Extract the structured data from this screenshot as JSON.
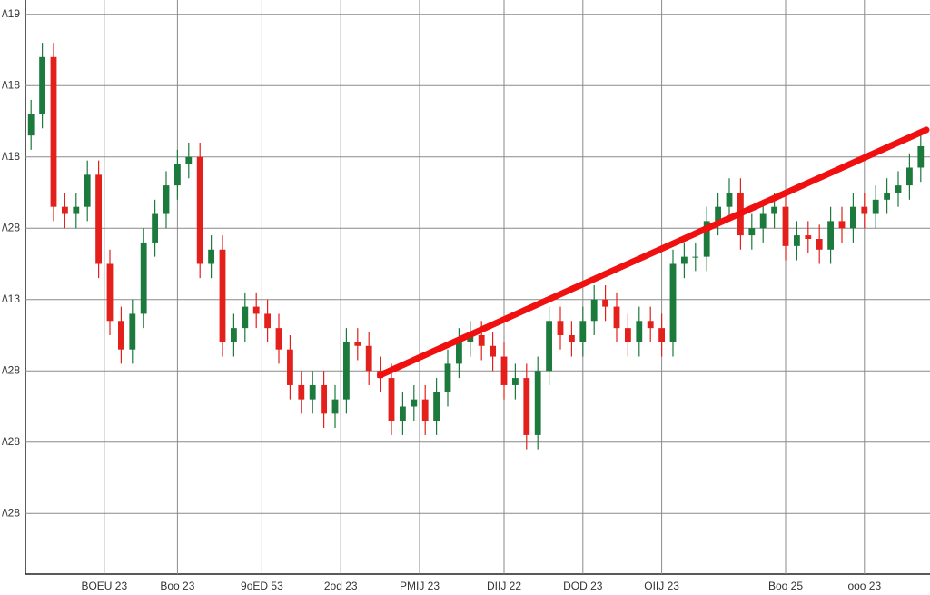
{
  "chart_data": {
    "type": "candlestick",
    "open": [
      6.3,
      6.6,
      7.4,
      5.3,
      5.2,
      5.3,
      5.75,
      4.5,
      3.7,
      3.3,
      3.8,
      4.8,
      5.2,
      5.6,
      5.9,
      6.0,
      4.5,
      4.7,
      3.4,
      3.6,
      3.9,
      3.8,
      3.6,
      3.3,
      2.8,
      2.6,
      2.8,
      2.4,
      2.6,
      3.4,
      3.35,
      3.0,
      2.9,
      2.3,
      2.5,
      2.6,
      2.3,
      2.7,
      3.1,
      3.4,
      3.5,
      3.35,
      3.2,
      2.8,
      2.9,
      2.1,
      3.0,
      3.7,
      3.5,
      3.4,
      3.7,
      4.0,
      3.9,
      3.6,
      3.4,
      3.7,
      3.6,
      3.4,
      4.5,
      4.6,
      4.6,
      5.1,
      5.3,
      5.5,
      4.9,
      5.0,
      5.2,
      5.3,
      4.75,
      4.9,
      4.85,
      4.7,
      5.1,
      5.0,
      5.3,
      5.2,
      5.4,
      5.5,
      5.6,
      5.85
    ],
    "high": [
      6.8,
      7.6,
      7.6,
      5.5,
      5.5,
      5.95,
      5.95,
      4.7,
      3.9,
      4.0,
      5.0,
      5.4,
      5.8,
      6.1,
      6.2,
      6.2,
      4.9,
      4.9,
      3.8,
      4.1,
      4.1,
      4.0,
      3.8,
      3.5,
      3.0,
      3.0,
      3.0,
      2.8,
      3.6,
      3.6,
      3.55,
      3.2,
      3.1,
      2.7,
      2.8,
      2.8,
      2.9,
      3.3,
      3.6,
      3.7,
      3.7,
      3.55,
      3.4,
      3.1,
      3.1,
      3.2,
      3.9,
      3.9,
      3.7,
      3.9,
      4.2,
      4.2,
      4.1,
      3.8,
      3.9,
      3.9,
      3.8,
      4.7,
      4.8,
      4.8,
      5.3,
      5.5,
      5.7,
      5.7,
      5.2,
      5.4,
      5.5,
      5.5,
      5.1,
      5.1,
      5.05,
      5.3,
      5.3,
      5.5,
      5.5,
      5.6,
      5.7,
      5.8,
      6.05,
      6.35
    ],
    "low": [
      6.1,
      6.4,
      5.1,
      5.0,
      5.0,
      5.1,
      4.3,
      3.5,
      3.1,
      3.1,
      3.6,
      4.6,
      5.0,
      5.4,
      5.7,
      4.3,
      4.3,
      3.2,
      3.2,
      3.4,
      3.6,
      3.4,
      3.1,
      2.6,
      2.4,
      2.4,
      2.2,
      2.2,
      2.4,
      3.15,
      2.8,
      2.7,
      2.1,
      2.1,
      2.3,
      2.1,
      2.1,
      2.5,
      2.9,
      3.2,
      3.15,
      3.0,
      2.6,
      2.6,
      1.9,
      1.9,
      2.8,
      3.3,
      3.2,
      3.2,
      3.5,
      3.7,
      3.4,
      3.2,
      3.2,
      3.4,
      3.2,
      3.2,
      4.3,
      4.4,
      4.4,
      4.9,
      5.1,
      4.7,
      4.7,
      4.8,
      5.0,
      4.55,
      4.55,
      4.65,
      4.5,
      4.5,
      4.8,
      4.8,
      5.0,
      5.0,
      5.2,
      5.3,
      5.4,
      5.65
    ],
    "close": [
      6.6,
      7.4,
      5.3,
      5.2,
      5.3,
      5.75,
      4.5,
      3.7,
      3.3,
      3.8,
      4.8,
      5.2,
      5.6,
      5.9,
      6.0,
      4.5,
      4.7,
      3.4,
      3.6,
      3.9,
      3.8,
      3.6,
      3.3,
      2.8,
      2.6,
      2.8,
      2.4,
      2.6,
      3.4,
      3.35,
      3.0,
      2.9,
      2.3,
      2.5,
      2.6,
      2.3,
      2.7,
      3.1,
      3.4,
      3.5,
      3.35,
      3.2,
      2.8,
      2.9,
      2.1,
      3.0,
      3.7,
      3.5,
      3.4,
      3.7,
      4.0,
      3.9,
      3.6,
      3.4,
      3.7,
      3.6,
      3.4,
      4.5,
      4.6,
      4.6,
      5.1,
      5.3,
      5.5,
      4.9,
      5.0,
      5.2,
      5.3,
      4.75,
      4.9,
      4.85,
      4.7,
      5.1,
      5.0,
      5.3,
      5.2,
      5.4,
      5.5,
      5.6,
      5.85,
      6.15
    ],
    "up_color": "#1b7a3c",
    "down_color": "#e3201b",
    "xlim": [
      0,
      80
    ],
    "xticks": [
      {
        "value": 7,
        "label": "BOEU 23"
      },
      {
        "value": 13.5,
        "label": "Boo 23"
      },
      {
        "value": 21,
        "label": "9oED 53"
      },
      {
        "value": 28,
        "label": "2od 23"
      },
      {
        "value": 35,
        "label": "PMIJ 23"
      },
      {
        "value": 42.5,
        "label": "DIIJ 22"
      },
      {
        "value": 49.5,
        "label": "DOD 23"
      },
      {
        "value": 56.5,
        "label": "OIIJ 23"
      },
      {
        "value": 67.5,
        "label": "Boo 25"
      },
      {
        "value": 74.5,
        "label": "ooo 23"
      }
    ],
    "ylim": [
      0.15,
      8.2
    ],
    "yticks": [
      {
        "value": 1,
        "label": "/\\28"
      },
      {
        "value": 2,
        "label": "/\\28"
      },
      {
        "value": 3,
        "label": "/\\28"
      },
      {
        "value": 4,
        "label": "/\\13"
      },
      {
        "value": 5,
        "label": "/\\28"
      },
      {
        "value": 6,
        "label": "/\\18"
      },
      {
        "value": 7,
        "label": "/\\18"
      },
      {
        "value": 8,
        "label": "/\\19"
      }
    ],
    "grid": true,
    "trendline": {
      "x": [
        31.5,
        80
      ],
      "y": [
        2.94,
        6.38
      ],
      "color": "#f01010"
    }
  }
}
